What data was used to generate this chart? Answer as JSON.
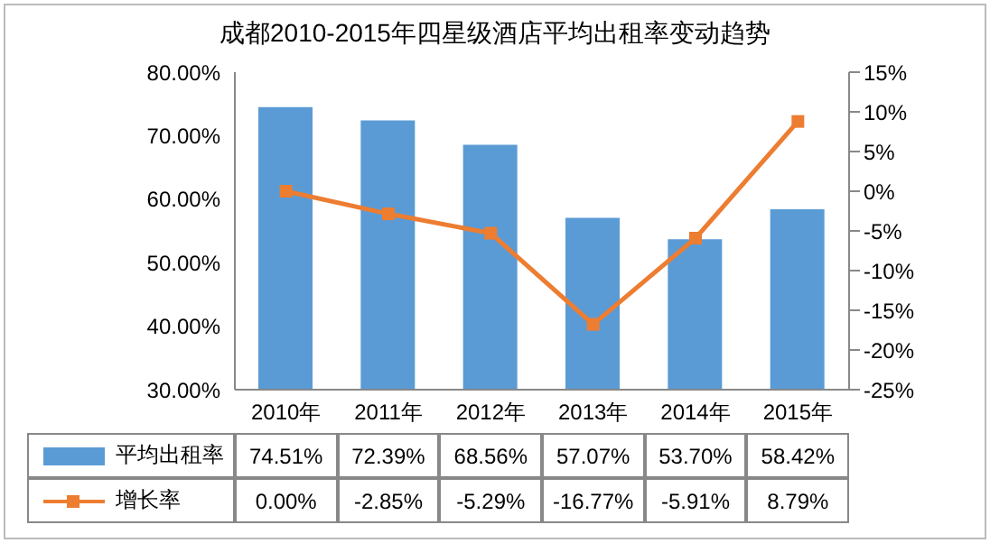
{
  "chart_data": {
    "type": "bar",
    "title": "成都2010-2015年四星级酒店平均出租率变动趋势",
    "categories": [
      "2010年",
      "2011年",
      "2012年",
      "2013年",
      "2014年",
      "2015年"
    ],
    "series": [
      {
        "name": "平均出租率",
        "color": "#5b9bd5",
        "values": [
          74.51,
          72.39,
          68.56,
          57.07,
          53.7,
          58.42
        ],
        "value_labels": [
          "74.51%",
          "72.39%",
          "68.56%",
          "57.07%",
          "53.70%",
          "58.42%"
        ]
      },
      {
        "name": "增长率",
        "type": "line",
        "axis": "y2",
        "color": "#ed7d31",
        "marker": "square",
        "values": [
          0,
          -2.85,
          -5.29,
          -16.77,
          -5.91,
          8.79
        ],
        "value_labels": [
          "0.00%",
          "-2.85%",
          "-5.29%",
          "-16.77%",
          "-5.91%",
          "8.79%"
        ]
      }
    ],
    "ylim": [
      30,
      80
    ],
    "yticks": [
      {
        "value": 30,
        "label": "30.00%"
      },
      {
        "value": 40,
        "label": "40.00%"
      },
      {
        "value": 50,
        "label": "50.00%"
      },
      {
        "value": 60,
        "label": "60.00%"
      },
      {
        "value": 70,
        "label": "70.00%"
      },
      {
        "value": 80,
        "label": "80.00%"
      }
    ],
    "y2lim": [
      -25,
      15
    ],
    "y2ticks": [
      {
        "value": -25,
        "label": "-25%"
      },
      {
        "value": -20,
        "label": "-20%"
      },
      {
        "value": -15,
        "label": "-15%"
      },
      {
        "value": -10,
        "label": "-10%"
      },
      {
        "value": -5,
        "label": "-5%"
      },
      {
        "value": 0,
        "label": "0%"
      },
      {
        "value": 5,
        "label": "5%"
      },
      {
        "value": 10,
        "label": "10%"
      },
      {
        "value": 15,
        "label": "15%"
      }
    ],
    "legend": "bottom"
  }
}
